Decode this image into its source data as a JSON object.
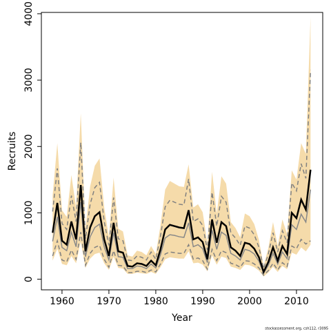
{
  "chart_data": {
    "type": "line",
    "xlabel": "Year",
    "ylabel": "Recruits",
    "footnote": "stockassessment.org, csh112, r3095",
    "xlim": [
      1955.6,
      2015.6
    ],
    "ylim": [
      -160,
      4020
    ],
    "xticks": [
      1960,
      1970,
      1980,
      1990,
      2000,
      2010
    ],
    "yticks": [
      0,
      1000,
      2000,
      3000,
      4000
    ],
    "x": [
      1958,
      1959,
      1960,
      1961,
      1962,
      1963,
      1964,
      1965,
      1966,
      1967,
      1968,
      1969,
      1970,
      1971,
      1972,
      1973,
      1974,
      1975,
      1976,
      1977,
      1978,
      1979,
      1980,
      1981,
      1982,
      1983,
      1984,
      1985,
      1986,
      1987,
      1988,
      1989,
      1990,
      1991,
      1992,
      1993,
      1994,
      1995,
      1996,
      1997,
      1998,
      1999,
      2000,
      2001,
      2002,
      2003,
      2004,
      2005,
      2006,
      2007,
      2008,
      2009,
      2010,
      2011,
      2012,
      2013
    ],
    "band": {
      "color": "#f5dbaa",
      "upper": [
        1260,
        2050,
        1040,
        940,
        1570,
        1080,
        2500,
        760,
        1400,
        1710,
        1820,
        1080,
        630,
        1530,
        760,
        720,
        360,
        340,
        430,
        410,
        360,
        500,
        380,
        810,
        1350,
        1480,
        1440,
        1400,
        1390,
        1730,
        1080,
        1130,
        1010,
        540,
        1620,
        990,
        1550,
        1440,
        860,
        770,
        630,
        990,
        950,
        830,
        590,
        200,
        470,
        860,
        500,
        900,
        680,
        1640,
        1500,
        2050,
        1890,
        3950
      ],
      "lower": [
        280,
        460,
        230,
        210,
        350,
        240,
        570,
        170,
        310,
        380,
        400,
        240,
        140,
        340,
        170,
        160,
        80,
        80,
        100,
        90,
        80,
        110,
        80,
        180,
        300,
        330,
        320,
        310,
        310,
        420,
        240,
        250,
        220,
        120,
        360,
        220,
        340,
        320,
        190,
        170,
        140,
        220,
        210,
        180,
        130,
        40,
        100,
        190,
        110,
        200,
        150,
        400,
        370,
        480,
        420,
        520
      ]
    },
    "series": [
      {
        "color": "#808080",
        "dash": true,
        "values": [
          1020,
          1670,
          840,
          750,
          1260,
          870,
          2060,
          610,
          1130,
          1380,
          1460,
          870,
          510,
          1230,
          610,
          580,
          290,
          280,
          350,
          330,
          290,
          410,
          300,
          650,
          1090,
          1190,
          1160,
          1130,
          1120,
          1510,
          870,
          910,
          810,
          440,
          1310,
          800,
          1250,
          1160,
          700,
          620,
          510,
          800,
          770,
          670,
          480,
          160,
          380,
          700,
          410,
          730,
          550,
          1450,
          1330,
          1740,
          1520,
          3150
        ]
      },
      {
        "color": "#808080",
        "dash": true,
        "values": [
          350,
          580,
          290,
          260,
          440,
          300,
          710,
          210,
          390,
          480,
          510,
          300,
          180,
          430,
          210,
          200,
          100,
          100,
          120,
          120,
          100,
          140,
          110,
          230,
          380,
          410,
          400,
          390,
          390,
          520,
          300,
          320,
          280,
          150,
          450,
          280,
          430,
          400,
          240,
          220,
          180,
          280,
          270,
          230,
          170,
          60,
          130,
          240,
          140,
          250,
          190,
          500,
          460,
          600,
          530,
          580
        ]
      },
      {
        "color": "#888888",
        "dash": false,
        "values": [
          570,
          940,
          480,
          430,
          710,
          490,
          1160,
          340,
          640,
          780,
          830,
          490,
          290,
          700,
          340,
          330,
          160,
          160,
          200,
          190,
          160,
          230,
          170,
          370,
          620,
          670,
          660,
          640,
          630,
          850,
          490,
          520,
          460,
          250,
          740,
          450,
          710,
          660,
          390,
          350,
          290,
          450,
          430,
          380,
          270,
          90,
          210,
          390,
          230,
          410,
          310,
          820,
          750,
          980,
          860,
          1350
        ]
      },
      {
        "color": "#000000",
        "dash": false,
        "bold": true,
        "values": [
          700,
          1150,
          580,
          520,
          870,
          600,
          1420,
          420,
          780,
          950,
          1010,
          600,
          350,
          850,
          420,
          400,
          200,
          190,
          240,
          230,
          200,
          280,
          210,
          450,
          750,
          820,
          800,
          780,
          770,
          1040,
          600,
          630,
          560,
          300,
          900,
          550,
          860,
          800,
          480,
          430,
          350,
          550,
          530,
          460,
          330,
          110,
          260,
          480,
          280,
          500,
          380,
          1000,
          920,
          1200,
          1050,
          1650
        ]
      }
    ]
  }
}
